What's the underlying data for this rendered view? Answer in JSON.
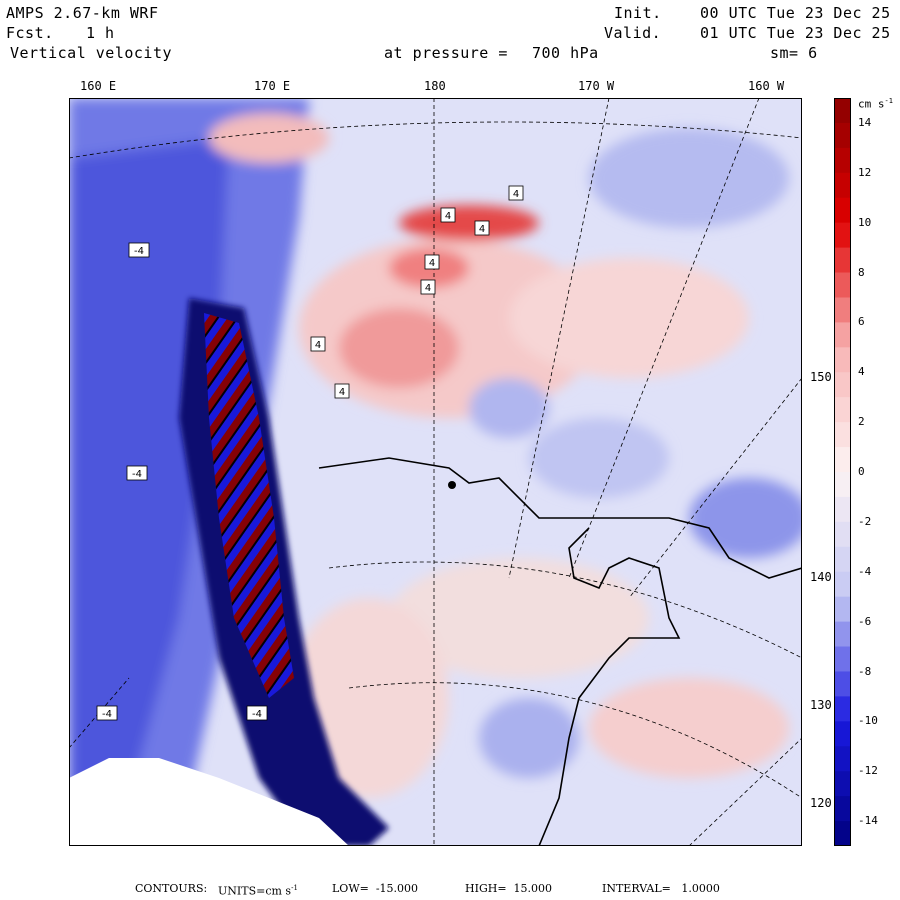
{
  "header": {
    "model": "AMPS 2.67-km WRF",
    "forecast_label": "Fcst.",
    "forecast_value": "1 h",
    "field": "Vertical velocity",
    "init_label": "Init.",
    "init_time": "00 UTC Tue 23 Dec 25",
    "valid_label": "Valid.",
    "valid_time": "01 UTC Tue 23 Dec 25",
    "pressure_label": "at pressure =",
    "pressure_value": "700 hPa",
    "smoothing": "sm= 6"
  },
  "axes": {
    "top_lon_labels": [
      "160 E",
      "170 E",
      "180",
      "170 W",
      "160 W"
    ],
    "right_lat_labels": [
      "150 W",
      "140 W",
      "130 W",
      "120 W"
    ]
  },
  "map_contour_labels": [
    "4",
    "4",
    "4",
    "4",
    "4",
    "4",
    "4",
    "-4",
    "-4",
    "-4",
    "-4"
  ],
  "colorbar": {
    "units_title": "cm s",
    "units_exp": "-1",
    "tick_labels": [
      "14",
      "12",
      "10",
      "8",
      "6",
      "4",
      "2",
      "0",
      "-2",
      "-4",
      "-6",
      "-8",
      "-10",
      "-12",
      "-14"
    ],
    "colors": {
      "max_red": "#8b0000",
      "red": "#e00000",
      "light_red": "#f7b4b4",
      "neutral": "#fdf3f3",
      "light_blue": "#c4c8f3",
      "blue": "#1a1ae0",
      "max_blue": "#000080"
    }
  },
  "footer": {
    "contours_label": "CONTOURS:",
    "units_text": "UNITS=cm s",
    "units_exp": "-1",
    "low_text": "LOW=  -15.000",
    "high_text": "HIGH=  15.000",
    "interval_text": "INTERVAL=   1.0000"
  }
}
